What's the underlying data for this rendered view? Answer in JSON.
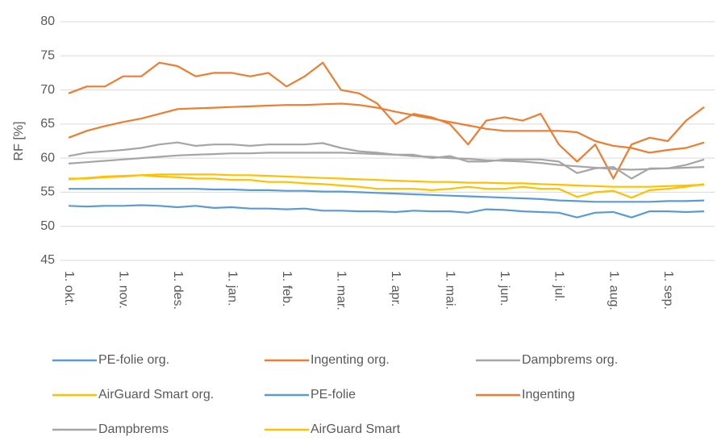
{
  "chart_data": {
    "type": "line",
    "ylabel": "RF [%]",
    "categories": [
      "1. okt.",
      null,
      null,
      "1. nov.",
      null,
      null,
      "1. des.",
      null,
      null,
      "1. jan.",
      null,
      null,
      "1. feb.",
      null,
      null,
      "1. mar.",
      null,
      null,
      "1. apr.",
      null,
      null,
      "1. mai.",
      null,
      null,
      "1. jun.",
      null,
      null,
      "1. jul.",
      null,
      null,
      "1. aug.",
      null,
      null,
      "1. sep.",
      null,
      null
    ],
    "ylim": [
      45,
      80
    ],
    "yticks": [
      45,
      50,
      55,
      60,
      65,
      70,
      75,
      80
    ],
    "grid": true,
    "legend": "bottom",
    "series": [
      {
        "name": "PE-folie org.",
        "color": "#5b9bd5",
        "values": [
          53,
          52.9,
          53,
          53,
          53.1,
          53,
          52.8,
          53,
          52.7,
          52.8,
          52.6,
          52.6,
          52.5,
          52.6,
          52.3,
          52.3,
          52.2,
          52.2,
          52.1,
          52.3,
          52.2,
          52.2,
          52,
          52.5,
          52.4,
          52.2,
          52.1,
          52,
          51.3,
          52,
          52.1,
          51.3,
          52.2,
          52.2,
          52.1,
          52.2
        ]
      },
      {
        "name": "Ingenting org.",
        "color": "#ed7d31",
        "values": [
          69.5,
          70.5,
          70.5,
          72,
          72,
          74,
          73.5,
          72,
          72.5,
          72.5,
          72,
          72.5,
          70.5,
          72,
          74,
          70,
          69.5,
          68,
          65,
          66.5,
          66,
          65,
          62,
          65.5,
          66,
          65.5,
          66.5,
          62,
          59.5,
          62,
          57,
          62,
          63,
          62.5,
          65.5,
          67.5
        ]
      },
      {
        "name": "Dampbrems org.",
        "color": "#a5a5a5",
        "values": [
          60.3,
          60.8,
          61,
          61.2,
          61.5,
          62,
          62.3,
          61.8,
          62,
          62,
          61.8,
          62,
          62,
          62,
          62.2,
          61.5,
          61,
          60.8,
          60.5,
          60.5,
          60,
          60.3,
          59.5,
          59.5,
          59.8,
          59.8,
          59.8,
          59.5,
          57.8,
          58.5,
          58.7,
          57,
          58.5,
          58.5,
          59,
          59.8
        ]
      },
      {
        "name": "AirGuard Smart org.",
        "color": "#ffc000",
        "values": [
          57,
          57,
          57.2,
          57.3,
          57.5,
          57.3,
          57.2,
          57,
          57,
          56.8,
          56.8,
          56.5,
          56.5,
          56.3,
          56.2,
          56,
          55.8,
          55.5,
          55.5,
          55.5,
          55.3,
          55.5,
          55.8,
          55.5,
          55.5,
          55.8,
          55.5,
          55.5,
          54.3,
          55,
          55.2,
          54.2,
          55.3,
          55.5,
          55.8,
          56.2
        ]
      },
      {
        "name": "PE-folie",
        "color": "#5b9bd5",
        "values": [
          55.5,
          55.5,
          55.5,
          55.5,
          55.5,
          55.5,
          55.5,
          55.5,
          55.4,
          55.4,
          55.3,
          55.3,
          55.2,
          55.2,
          55.1,
          55.1,
          55,
          54.9,
          54.8,
          54.7,
          54.6,
          54.5,
          54.4,
          54.3,
          54.2,
          54.1,
          54,
          53.8,
          53.7,
          53.6,
          53.6,
          53.6,
          53.6,
          53.7,
          53.7,
          53.8
        ]
      },
      {
        "name": "Ingenting",
        "color": "#ed7d31",
        "values": [
          63,
          64,
          64.7,
          65.3,
          65.8,
          66.5,
          67.2,
          67.3,
          67.4,
          67.5,
          67.6,
          67.7,
          67.8,
          67.8,
          67.9,
          68,
          67.8,
          67.4,
          66.8,
          66.3,
          65.8,
          65.3,
          64.8,
          64.3,
          64,
          64,
          64,
          64,
          63.8,
          62.5,
          61.8,
          61.5,
          60.8,
          61.2,
          61.5,
          62.3
        ]
      },
      {
        "name": "Dampbrems",
        "color": "#a5a5a5",
        "values": [
          59.2,
          59.4,
          59.6,
          59.8,
          60,
          60.2,
          60.4,
          60.5,
          60.6,
          60.7,
          60.7,
          60.8,
          60.8,
          60.8,
          60.8,
          60.8,
          60.7,
          60.6,
          60.5,
          60.3,
          60.2,
          60,
          59.9,
          59.7,
          59.6,
          59.5,
          59.3,
          59,
          58.8,
          58.6,
          58.4,
          58.3,
          58.4,
          58.5,
          58.6,
          58.7
        ]
      },
      {
        "name": "AirGuard Smart",
        "color": "#ffc000",
        "values": [
          56.9,
          57.1,
          57.3,
          57.4,
          57.5,
          57.6,
          57.6,
          57.6,
          57.6,
          57.5,
          57.5,
          57.4,
          57.3,
          57.2,
          57.1,
          57,
          56.9,
          56.8,
          56.7,
          56.6,
          56.5,
          56.5,
          56.4,
          56.4,
          56.3,
          56.3,
          56.2,
          56.1,
          56,
          55.9,
          55.8,
          55.8,
          55.8,
          55.9,
          56,
          56.1
        ]
      }
    ]
  }
}
